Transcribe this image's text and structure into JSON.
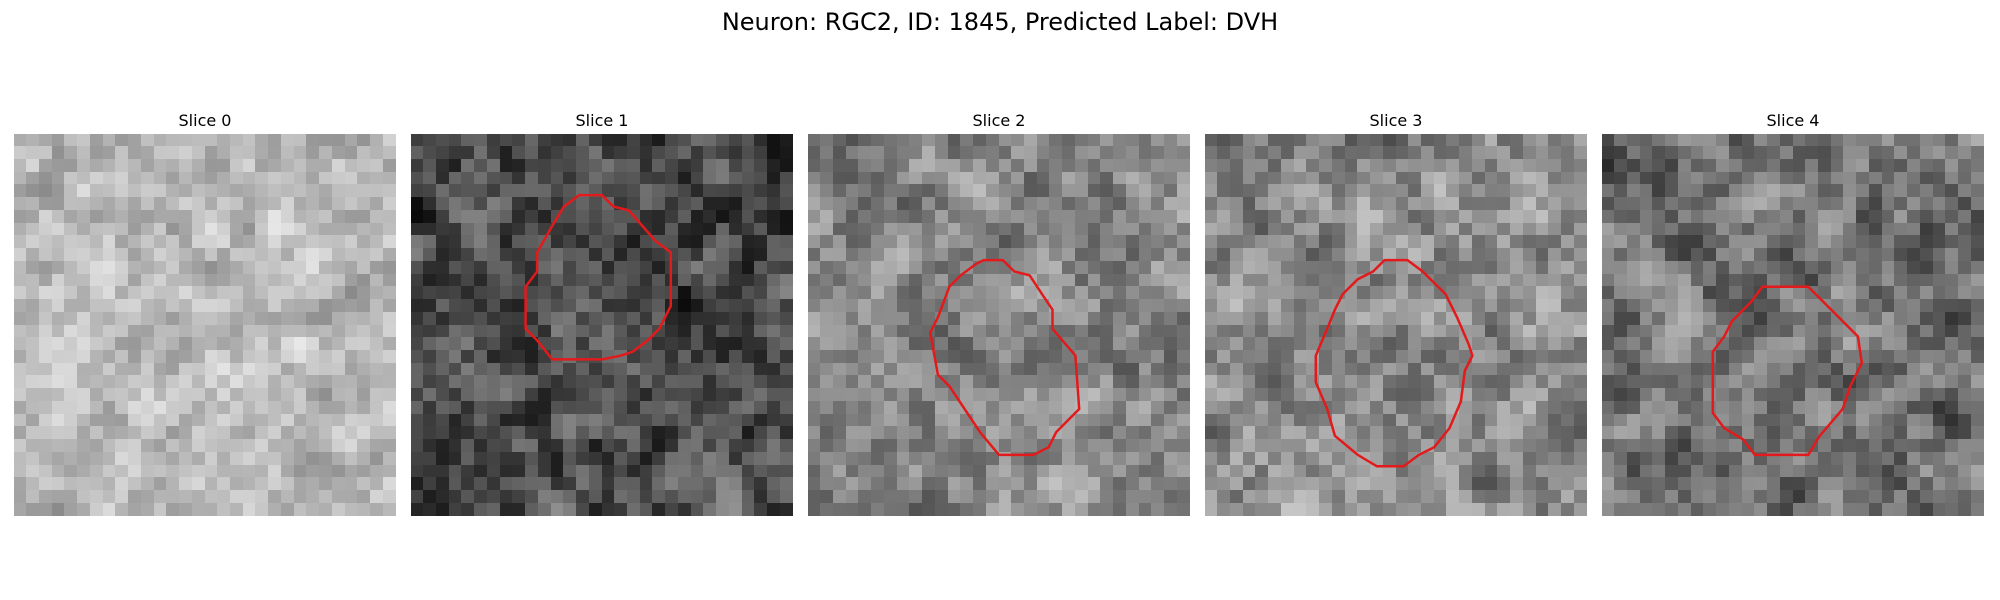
{
  "figure": {
    "title": "Neuron: RGC2, ID: 1845, Predicted Label: DVH"
  },
  "panels": [
    {
      "title": "Slice 0",
      "brightness": 0.72,
      "contrast": 0.16,
      "seed": 11,
      "roi": false
    },
    {
      "title": "Slice 1",
      "brightness": 0.3,
      "contrast": 0.22,
      "seed": 23,
      "roi": true,
      "roi_points": [
        [
          0.37,
          0.24
        ],
        [
          0.4,
          0.19
        ],
        [
          0.44,
          0.16
        ],
        [
          0.5,
          0.16
        ],
        [
          0.53,
          0.19
        ],
        [
          0.57,
          0.2
        ],
        [
          0.64,
          0.28
        ],
        [
          0.68,
          0.31
        ],
        [
          0.68,
          0.45
        ],
        [
          0.65,
          0.51
        ],
        [
          0.62,
          0.54
        ],
        [
          0.58,
          0.57
        ],
        [
          0.55,
          0.58
        ],
        [
          0.5,
          0.59
        ],
        [
          0.37,
          0.59
        ],
        [
          0.33,
          0.54
        ],
        [
          0.3,
          0.51
        ],
        [
          0.3,
          0.4
        ],
        [
          0.33,
          0.36
        ],
        [
          0.33,
          0.31
        ]
      ]
    },
    {
      "title": "Slice 2",
      "brightness": 0.52,
      "contrast": 0.2,
      "seed": 37,
      "roi": true,
      "roi_points": [
        [
          0.37,
          0.4
        ],
        [
          0.4,
          0.37
        ],
        [
          0.44,
          0.34
        ],
        [
          0.46,
          0.33
        ],
        [
          0.51,
          0.33
        ],
        [
          0.54,
          0.36
        ],
        [
          0.58,
          0.37
        ],
        [
          0.62,
          0.43
        ],
        [
          0.64,
          0.46
        ],
        [
          0.64,
          0.51
        ],
        [
          0.7,
          0.58
        ],
        [
          0.71,
          0.72
        ],
        [
          0.65,
          0.78
        ],
        [
          0.63,
          0.82
        ],
        [
          0.59,
          0.84
        ],
        [
          0.5,
          0.84
        ],
        [
          0.45,
          0.78
        ],
        [
          0.41,
          0.72
        ],
        [
          0.37,
          0.66
        ],
        [
          0.34,
          0.63
        ],
        [
          0.32,
          0.52
        ],
        [
          0.34,
          0.48
        ]
      ]
    },
    {
      "title": "Slice 3",
      "brightness": 0.55,
      "contrast": 0.22,
      "seed": 53,
      "roi": true,
      "roi_points": [
        [
          0.32,
          0.51
        ],
        [
          0.34,
          0.46
        ],
        [
          0.36,
          0.42
        ],
        [
          0.4,
          0.38
        ],
        [
          0.44,
          0.36
        ],
        [
          0.47,
          0.33
        ],
        [
          0.53,
          0.33
        ],
        [
          0.57,
          0.36
        ],
        [
          0.63,
          0.42
        ],
        [
          0.66,
          0.48
        ],
        [
          0.69,
          0.55
        ],
        [
          0.7,
          0.58
        ],
        [
          0.68,
          0.62
        ],
        [
          0.67,
          0.7
        ],
        [
          0.64,
          0.77
        ],
        [
          0.6,
          0.82
        ],
        [
          0.56,
          0.84
        ],
        [
          0.52,
          0.87
        ],
        [
          0.45,
          0.87
        ],
        [
          0.4,
          0.84
        ],
        [
          0.34,
          0.79
        ],
        [
          0.32,
          0.72
        ],
        [
          0.29,
          0.65
        ],
        [
          0.29,
          0.58
        ]
      ]
    },
    {
      "title": "Slice 4",
      "brightness": 0.45,
      "contrast": 0.22,
      "seed": 71,
      "roi": true,
      "roi_points": [
        [
          0.29,
          0.57
        ],
        [
          0.32,
          0.53
        ],
        [
          0.34,
          0.49
        ],
        [
          0.39,
          0.44
        ],
        [
          0.42,
          0.4
        ],
        [
          0.54,
          0.4
        ],
        [
          0.58,
          0.44
        ],
        [
          0.61,
          0.47
        ],
        [
          0.67,
          0.53
        ],
        [
          0.68,
          0.6
        ],
        [
          0.65,
          0.66
        ],
        [
          0.63,
          0.72
        ],
        [
          0.57,
          0.79
        ],
        [
          0.54,
          0.84
        ],
        [
          0.4,
          0.84
        ],
        [
          0.37,
          0.8
        ],
        [
          0.32,
          0.77
        ],
        [
          0.29,
          0.73
        ]
      ]
    }
  ],
  "colors": {
    "roi": "#e31a1c"
  }
}
